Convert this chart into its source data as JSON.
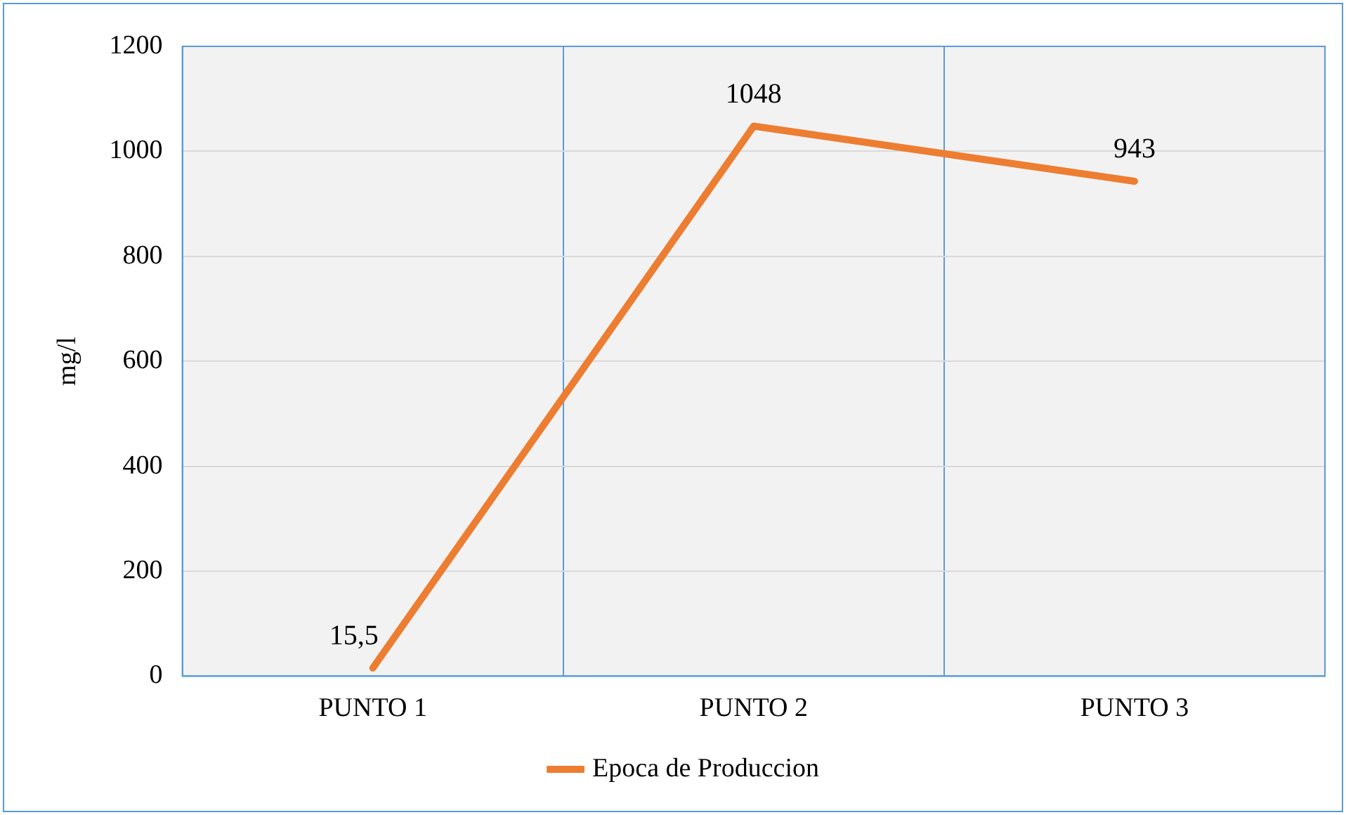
{
  "chart_data": {
    "type": "line",
    "ylabel": "mg/l",
    "categories": [
      "PUNTO 1",
      "PUNTO 2",
      "PUNTO 3"
    ],
    "series": [
      {
        "name": "Epoca de Produccion",
        "color": "#ed7d31",
        "values": [
          15.5,
          1048,
          943
        ],
        "value_labels": [
          "15,5",
          "1048",
          "943"
        ]
      }
    ],
    "ylim": [
      0,
      1200
    ],
    "yticks": [
      0,
      200,
      400,
      600,
      800,
      1000,
      1200
    ],
    "grid": true,
    "legend": "bottom",
    "marker": "none",
    "line_style": "solid"
  }
}
